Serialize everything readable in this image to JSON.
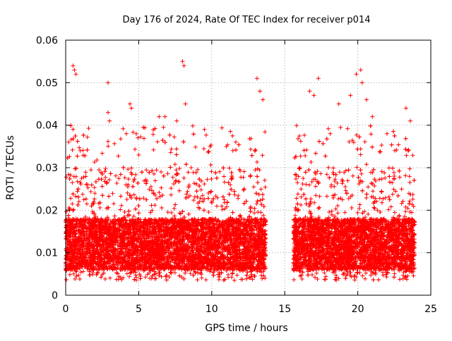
{
  "chart_data": {
    "type": "scatter",
    "title": "Day 176 of 2024, Rate Of TEC Index for receiver p014",
    "xlabel": "GPS time / hours",
    "ylabel": "ROTI / TECUs",
    "xlim": [
      0,
      25
    ],
    "ylim": [
      0,
      0.06
    ],
    "xticks": [
      0,
      5,
      10,
      15,
      20,
      25
    ],
    "xtick_labels": [
      "0",
      "5",
      "10",
      "15",
      "20",
      "25"
    ],
    "yticks": [
      0,
      0.01,
      0.02,
      0.03,
      0.04,
      0.05,
      0.06
    ],
    "ytick_labels": [
      "0",
      "0.01",
      "0.02",
      "0.03",
      "0.04",
      "0.05",
      "0.06"
    ],
    "grid": true,
    "marker": "+",
    "color": "#ff0000",
    "series": [
      {
        "name": "ROTI",
        "segments": [
          {
            "x_start": 0.0,
            "x_end": 13.7,
            "typical_range": [
              0.006,
              0.018
            ]
          },
          {
            "x_start": 15.6,
            "x_end": 23.9,
            "typical_range": [
              0.006,
              0.018
            ]
          }
        ],
        "x": [
          0.2,
          0.5,
          0.6,
          0.7,
          1.0,
          1.5,
          2.0,
          2.9,
          2.9,
          3.0,
          4.4,
          4.5,
          5.0,
          6.4,
          6.8,
          7.6,
          8.0,
          8.1,
          8.2,
          9.5,
          11.0,
          13.1,
          13.3,
          13.5,
          16.0,
          16.7,
          17.0,
          17.3,
          18.7,
          19.5,
          19.9,
          20.2,
          20.3,
          20.6,
          21.0,
          22.0,
          23.3,
          23.6
        ],
        "y": [
          0.036,
          0.054,
          0.053,
          0.052,
          0.034,
          0.026,
          0.024,
          0.05,
          0.043,
          0.041,
          0.045,
          0.044,
          0.033,
          0.042,
          0.042,
          0.041,
          0.055,
          0.054,
          0.045,
          0.039,
          0.035,
          0.051,
          0.048,
          0.046,
          0.03,
          0.048,
          0.047,
          0.051,
          0.045,
          0.047,
          0.052,
          0.053,
          0.05,
          0.046,
          0.042,
          0.038,
          0.044,
          0.041
        ]
      }
    ]
  }
}
